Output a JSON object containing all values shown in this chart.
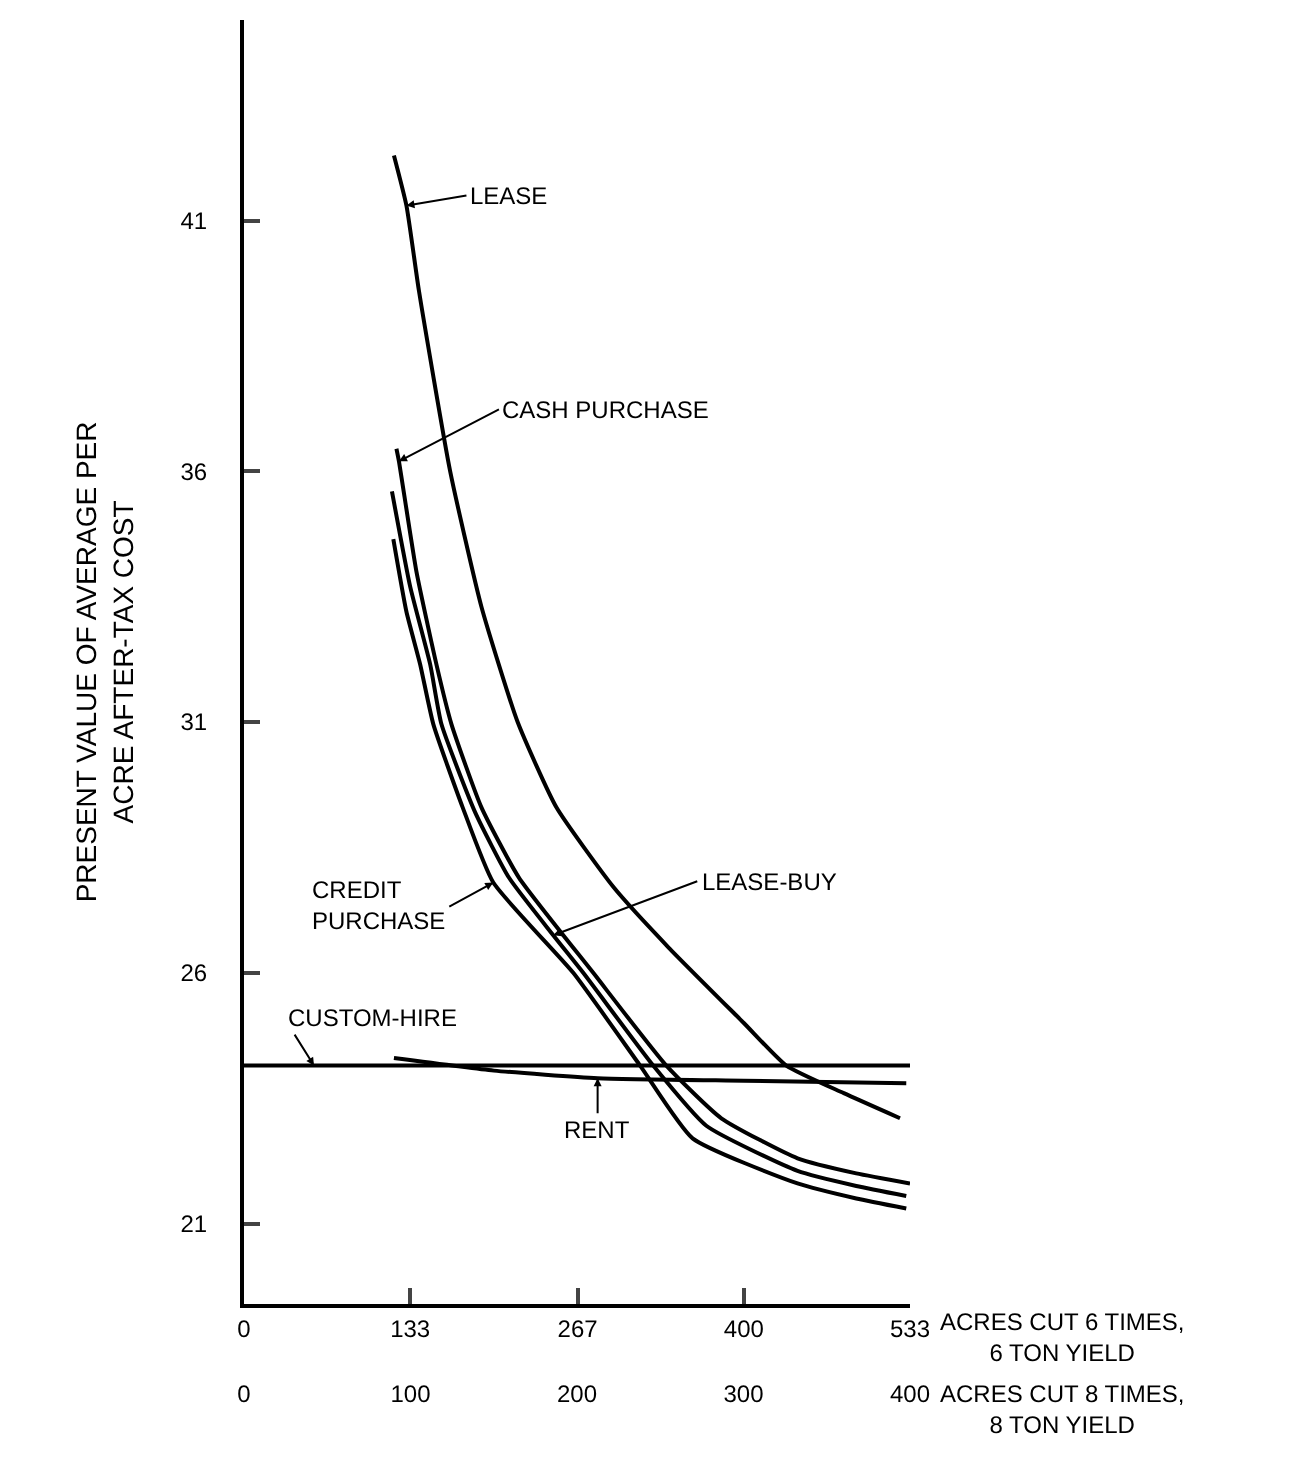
{
  "chart_data": {
    "type": "line",
    "ylabel": "PRESENT VALUE OF AVERAGE PER\nACRE AFTER-TAX COST",
    "xlabel": "ACRES CUT 6 TIMES,\n6 TON YIELD",
    "x2label": "ACRES CUT 8 TIMES,\n8 TON YIELD",
    "xlim": [
      0,
      533
    ],
    "xticks": [
      0,
      133,
      267,
      400,
      533
    ],
    "x2lim": [
      0,
      400
    ],
    "x2ticks": [
      0,
      100,
      200,
      300,
      400
    ],
    "ylim": [
      19.4,
      45
    ],
    "yticks": [
      21,
      26,
      31,
      36,
      41
    ],
    "marker": "none",
    "line_style": "solid",
    "series": [
      {
        "color": "#000000",
        "x": [
          120,
          130,
          140,
          165,
          190,
          219,
          250,
          296,
          340,
          400,
          434,
          480,
          525
        ],
        "values": [
          42.3,
          41.3,
          39.6,
          36.0,
          33.3,
          31.0,
          29.3,
          27.7,
          26.5,
          25.0,
          24.15,
          23.6,
          23.1
        ]
      },
      {
        "color": "#000000",
        "x": [
          122,
          124,
          138,
          154,
          166,
          190,
          220,
          279.5,
          338,
          382,
          443,
          490,
          533
        ],
        "values": [
          36.45,
          36.2,
          34.0,
          32.15,
          30.96,
          29.3,
          27.9,
          26.0,
          24.15,
          23.1,
          22.3,
          22.0,
          21.8
        ]
      },
      {
        "color": "#000000",
        "x": [
          118.4,
          133,
          149,
          158,
          185,
          212,
          247.5,
          271.5,
          327.5,
          370,
          443,
          490,
          530
        ],
        "values": [
          35.6,
          33.7,
          32.15,
          30.96,
          29.2,
          27.9,
          26.75,
          26.0,
          24.15,
          22.95,
          22.05,
          21.75,
          21.55
        ]
      },
      {
        "color": "#000000",
        "x": [
          119.5,
          130,
          141,
          151.5,
          175,
          199.5,
          263.5,
          317,
          359,
          443,
          490,
          530
        ],
        "values": [
          34.65,
          33.2,
          32.15,
          30.96,
          29.3,
          27.8,
          26.0,
          24.15,
          22.7,
          21.8,
          21.5,
          21.3
        ]
      },
      {
        "color": "#000000",
        "x": [
          0,
          533
        ],
        "values": [
          24.15,
          24.15
        ]
      },
      {
        "color": "#000000",
        "x": [
          120,
          200,
          283,
          400,
          530
        ],
        "values": [
          24.3,
          24.05,
          23.9,
          23.85,
          23.8
        ]
      }
    ],
    "annotations": [
      {
        "text": "LEASE",
        "x": 130,
        "y": 41.3
      },
      {
        "text": "CASH PURCHASE",
        "x": 124,
        "y": 36.2
      },
      {
        "text": "CREDIT\nPURCHASE",
        "x": 199.5,
        "y": 27.8
      },
      {
        "text": "LEASE-BUY",
        "x": 247.5,
        "y": 26.75
      },
      {
        "text": "CUSTOM-HIRE",
        "x": 56,
        "y": 24.15
      },
      {
        "text": "RENT",
        "x": 283,
        "y": 23.9
      }
    ]
  }
}
